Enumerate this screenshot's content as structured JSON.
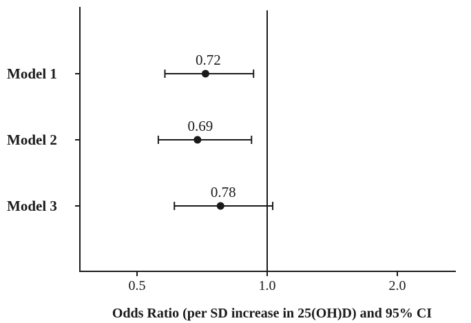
{
  "chart_data": {
    "type": "scatter",
    "subtype": "forest-plot",
    "title": "",
    "xlabel": "Odds Ratio (per SD increase in 25(OH)D) and 95% CI",
    "ylabel": "",
    "xlim": [
      0.3,
      2.25
    ],
    "x_ticks": [
      0.5,
      1.0,
      2.0
    ],
    "x_tick_labels": [
      "0.5",
      "1.0",
      "2.0"
    ],
    "reference_line_x": 1.0,
    "grid": false,
    "legend": "none",
    "categories": [
      "Model 1",
      "Model 2",
      "Model 3"
    ],
    "series": [
      {
        "estimates": [
          0.72,
          0.69,
          0.78
        ],
        "point_labels": [
          "0.72",
          "0.69",
          "0.78"
        ],
        "ci_lower": [
          0.58,
          0.56,
          0.61
        ],
        "ci_upper": [
          0.93,
          0.92,
          1.03
        ]
      }
    ],
    "colors": {
      "marker": "#1a1a1a",
      "line": "#1a1a1a",
      "text": "#1a1a1a"
    }
  }
}
